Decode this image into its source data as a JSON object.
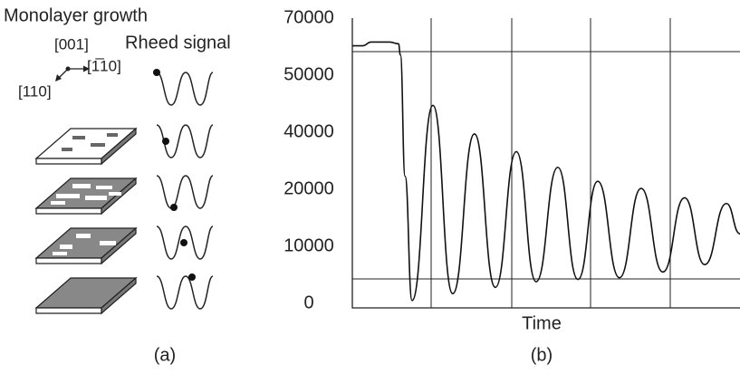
{
  "panel_a": {
    "title": "Monolayer growth",
    "signal_label": "Rheed signal",
    "directions": [
      "[001]",
      "[1̅10]",
      "[110]"
    ],
    "panel_label": "(a)"
  },
  "chart_data": {
    "type": "line",
    "x_label": "Time",
    "panel_label": "(b)",
    "x": [
      0,
      2.6,
      4.9,
      7.2,
      9.6,
      11.9,
      12.4,
      13.6,
      15.4,
      20.8,
      25.9,
      31.5,
      36.9,
      42.3,
      47.4,
      53.0,
      58.2,
      63.3,
      68.9,
      74.5,
      80.1,
      85.7,
      90.9,
      96.5,
      100
    ],
    "values": [
      60300,
      60300,
      61600,
      61600,
      61600,
      61000,
      57100,
      24600,
      500,
      44700,
      1700,
      39400,
      2800,
      33200,
      3800,
      27700,
      4200,
      22800,
      4500,
      20300,
      5500,
      18500,
      6800,
      17500,
      12200
    ],
    "color": "#111111",
    "xlim": [
      0,
      100
    ],
    "ylim": [
      0,
      70000
    ],
    "yticks": [
      0,
      10000,
      20000,
      40000,
      50000,
      70000
    ]
  }
}
